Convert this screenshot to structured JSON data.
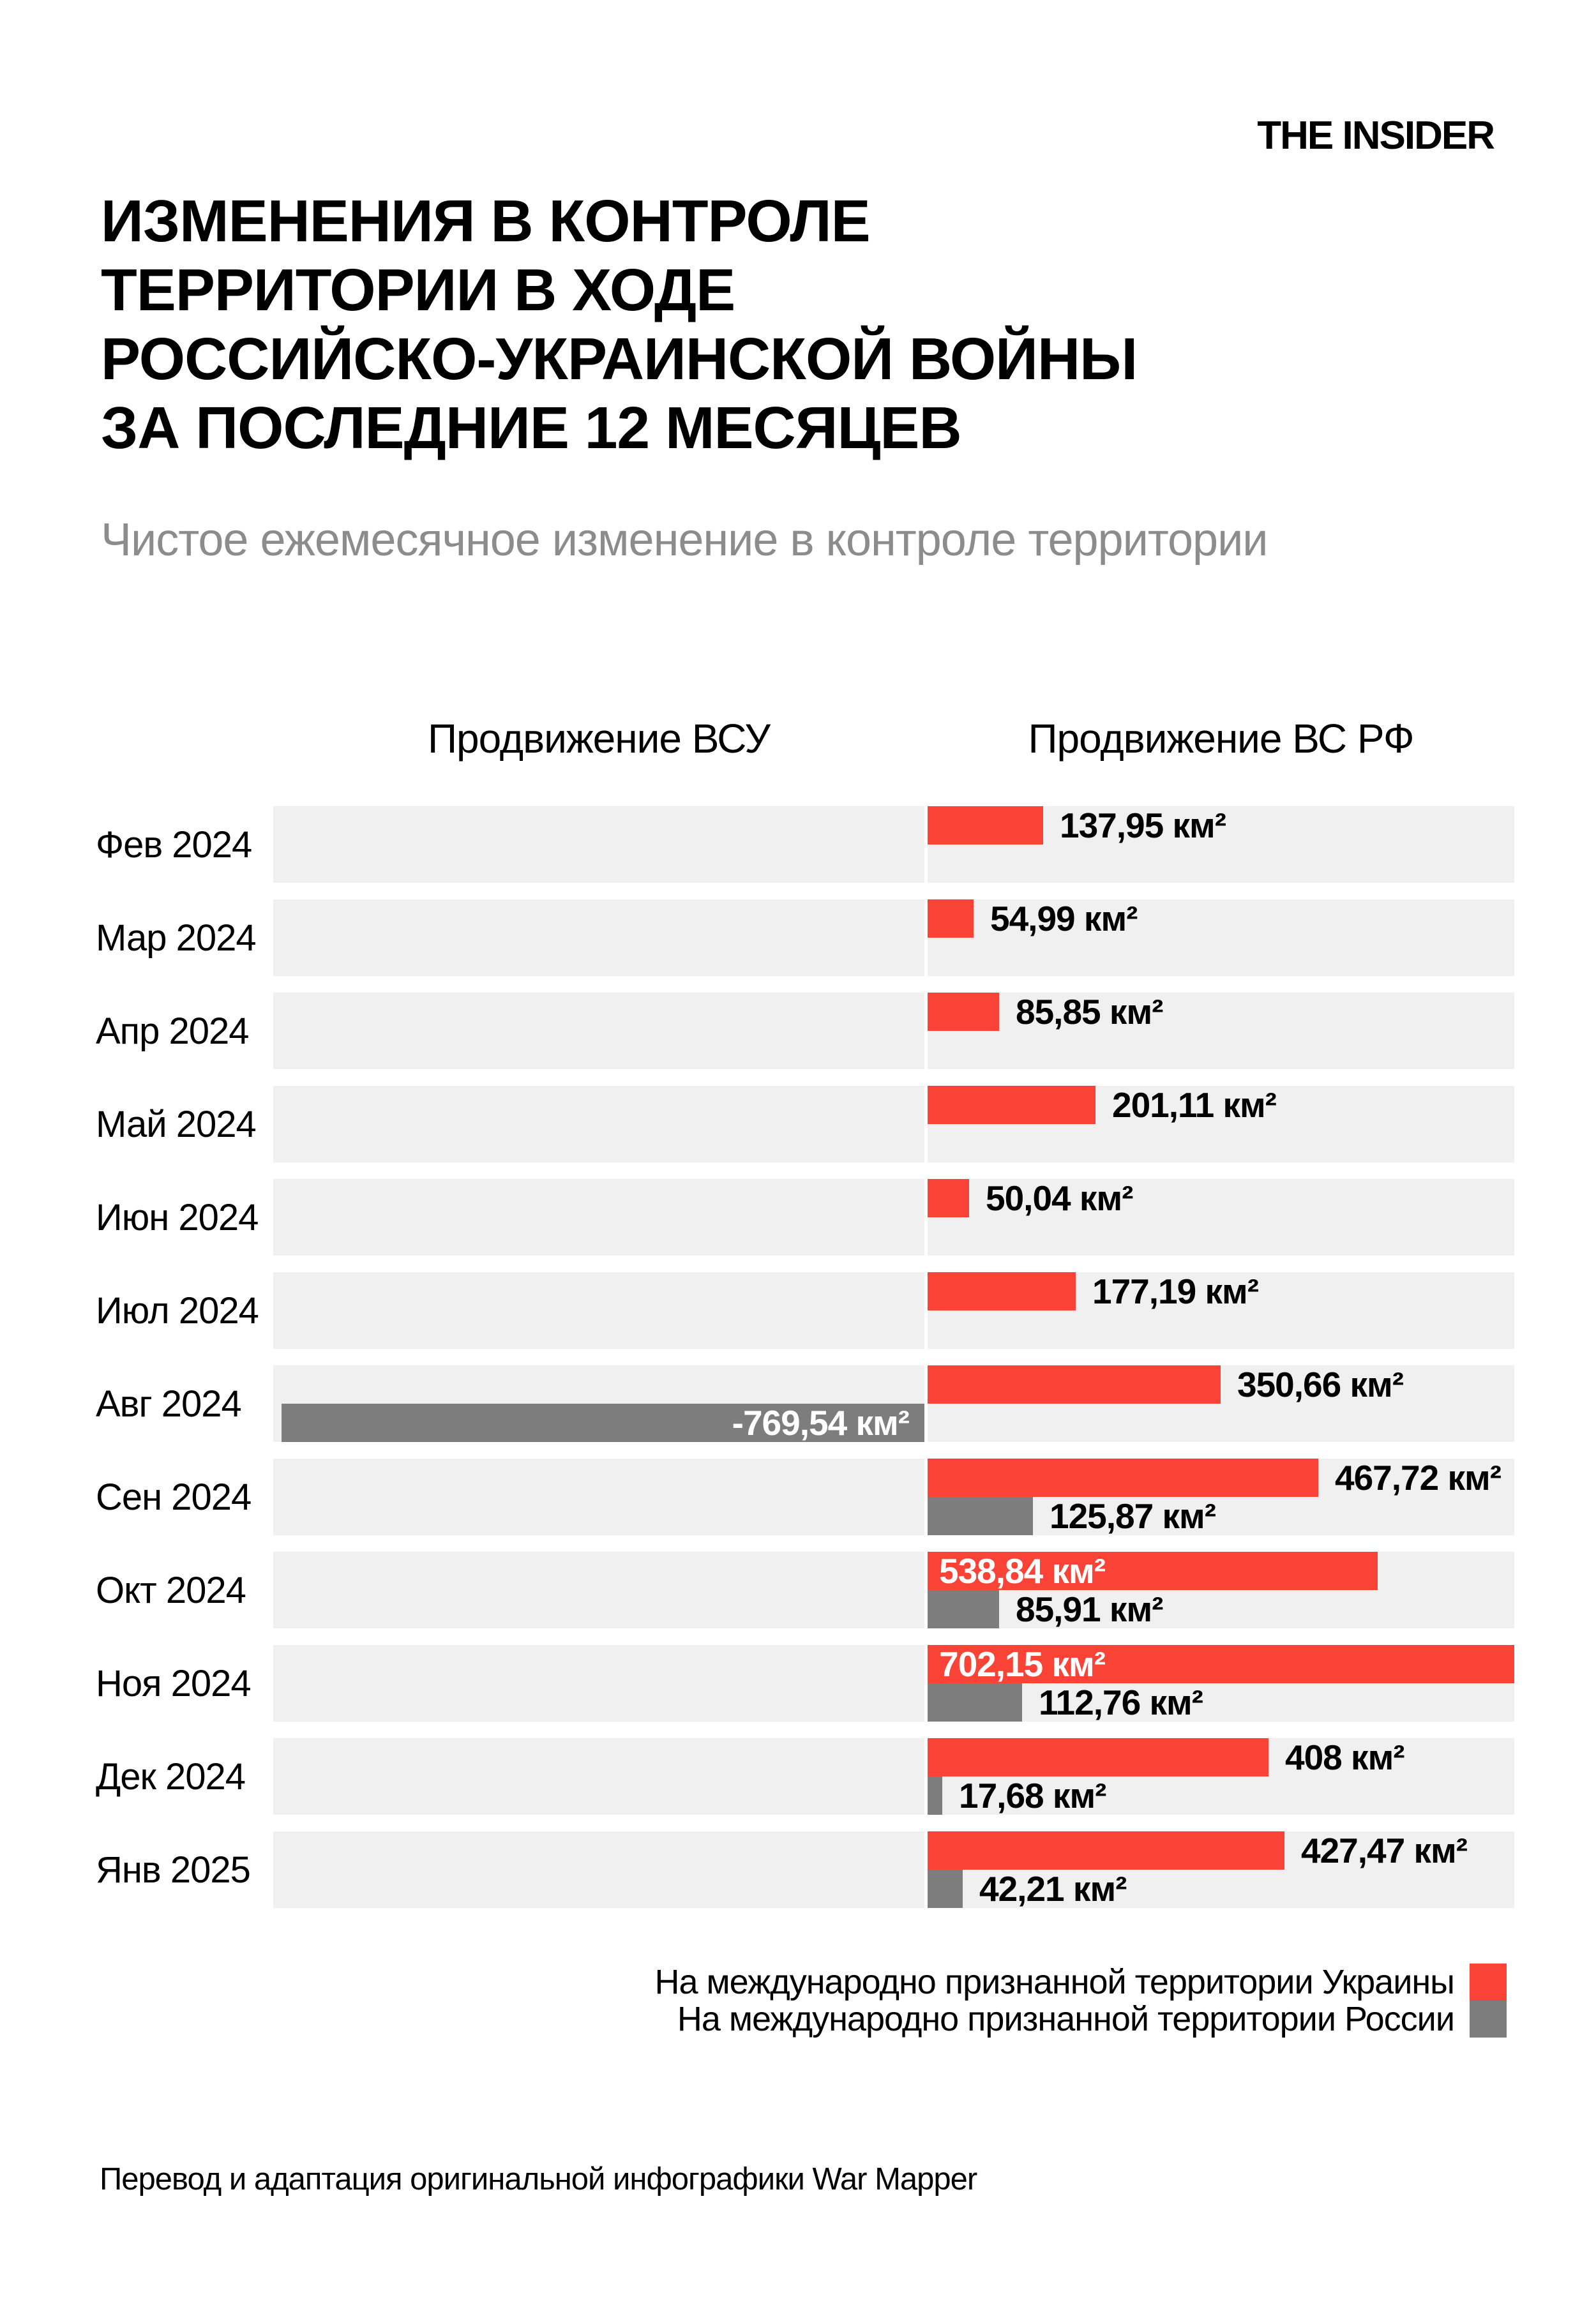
{
  "header": {
    "logo": "THE INSIDER",
    "title_lines": [
      "ИЗМЕНЕНИЯ В КОНТРОЛЕ",
      "ТЕРРИТОРИИ В ХОДЕ",
      "РОССИЙСКО-УКРАИНСКОЙ ВОЙНЫ",
      "ЗА ПОСЛЕДНИЕ 12 МЕСЯЦЕВ"
    ],
    "subtitle": "Чистое ежемесячное изменение в контроле территории"
  },
  "chart_data": {
    "type": "bar",
    "orientation": "horizontal-diverging",
    "unit": "км²",
    "column_headers": {
      "left": "Продвижение ВСУ",
      "right": "Продвижение ВС РФ"
    },
    "colors": {
      "ukraine": "#f84336",
      "russia": "#7d7d7d",
      "row_background": "#f0f0f0"
    },
    "axis": {
      "right_max_km2": 702.15,
      "left_min_km2": -779,
      "gridlines": false
    },
    "categories": [
      "Фев 2024",
      "Мар 2024",
      "Апр 2024",
      "Май 2024",
      "Июн 2024",
      "Июл 2024",
      "Авг 2024",
      "Сен 2024",
      "Окт 2024",
      "Ноя 2024",
      "Дек 2024",
      "Янв 2025"
    ],
    "series": [
      {
        "key": "ukraine",
        "name": "На международно признанной территории Украины",
        "color": "#f84336",
        "values": [
          137.95,
          54.99,
          85.85,
          201.11,
          50.04,
          177.19,
          350.66,
          467.72,
          538.84,
          702.15,
          408,
          427.47
        ]
      },
      {
        "key": "russia",
        "name": "На международно признанной территории России",
        "color": "#7d7d7d",
        "values": [
          0,
          0,
          0,
          0,
          0,
          0,
          -769.54,
          125.87,
          85.91,
          112.76,
          17.68,
          42.21
        ]
      }
    ],
    "rows": [
      {
        "month": "Фев 2024",
        "bars": [
          {
            "territory": "ukraine",
            "direction": "right",
            "value": 137.95,
            "label": "137,95 км²",
            "label_placement": "outside"
          }
        ]
      },
      {
        "month": "Мар 2024",
        "bars": [
          {
            "territory": "ukraine",
            "direction": "right",
            "value": 54.99,
            "label": "54,99 км²",
            "label_placement": "outside"
          }
        ]
      },
      {
        "month": "Апр 2024",
        "bars": [
          {
            "territory": "ukraine",
            "direction": "right",
            "value": 85.85,
            "label": "85,85 км²",
            "label_placement": "outside"
          }
        ]
      },
      {
        "month": "Май 2024",
        "bars": [
          {
            "territory": "ukraine",
            "direction": "right",
            "value": 201.11,
            "label": "201,11 км²",
            "label_placement": "outside"
          }
        ]
      },
      {
        "month": "Июн 2024",
        "bars": [
          {
            "territory": "ukraine",
            "direction": "right",
            "value": 50.04,
            "label": "50,04 км²",
            "label_placement": "outside"
          }
        ]
      },
      {
        "month": "Июл 2024",
        "bars": [
          {
            "territory": "ukraine",
            "direction": "right",
            "value": 177.19,
            "label": "177,19 км²",
            "label_placement": "outside"
          }
        ]
      },
      {
        "month": "Авг 2024",
        "bars": [
          {
            "territory": "ukraine",
            "direction": "right",
            "value": 350.66,
            "label": "350,66 км²",
            "label_placement": "outside"
          },
          {
            "territory": "russia",
            "direction": "left",
            "value": 769.54,
            "label": "-769,54 км²",
            "label_placement": "inside"
          }
        ]
      },
      {
        "month": "Сен 2024",
        "bars": [
          {
            "territory": "ukraine",
            "direction": "right",
            "value": 467.72,
            "label": "467,72 км²",
            "label_placement": "outside"
          },
          {
            "territory": "russia",
            "direction": "right",
            "value": 125.87,
            "label": "125,87 км²",
            "label_placement": "outside"
          }
        ]
      },
      {
        "month": "Окт 2024",
        "bars": [
          {
            "territory": "ukraine",
            "direction": "right",
            "value": 538.84,
            "label": "538,84 км²",
            "label_placement": "inside"
          },
          {
            "territory": "russia",
            "direction": "right",
            "value": 85.91,
            "label": "85,91 км²",
            "label_placement": "outside"
          }
        ]
      },
      {
        "month": "Ноя 2024",
        "bars": [
          {
            "territory": "ukraine",
            "direction": "right",
            "value": 702.15,
            "label": "702,15 км²",
            "label_placement": "inside"
          },
          {
            "territory": "russia",
            "direction": "right",
            "value": 112.76,
            "label": "112,76 км²",
            "label_placement": "outside"
          }
        ]
      },
      {
        "month": "Дек 2024",
        "bars": [
          {
            "territory": "ukraine",
            "direction": "right",
            "value": 408,
            "label": "408 км²",
            "label_placement": "outside"
          },
          {
            "territory": "russia",
            "direction": "right",
            "value": 17.68,
            "label": "17,68 км²",
            "label_placement": "outside"
          }
        ]
      },
      {
        "month": "Янв 2025",
        "bars": [
          {
            "territory": "ukraine",
            "direction": "right",
            "value": 427.47,
            "label": "427,47 км²",
            "label_placement": "outside"
          },
          {
            "territory": "russia",
            "direction": "right",
            "value": 42.21,
            "label": "42,21 км²",
            "label_placement": "outside"
          }
        ]
      }
    ]
  },
  "legend": {
    "items": [
      {
        "label": "На международно признанной территории Украины",
        "color": "#f84336"
      },
      {
        "label": "На международно признанной территории России",
        "color": "#7d7d7d"
      }
    ]
  },
  "footer": {
    "credit": "Перевод и адаптация оригинальной инфографики War Mapper"
  }
}
